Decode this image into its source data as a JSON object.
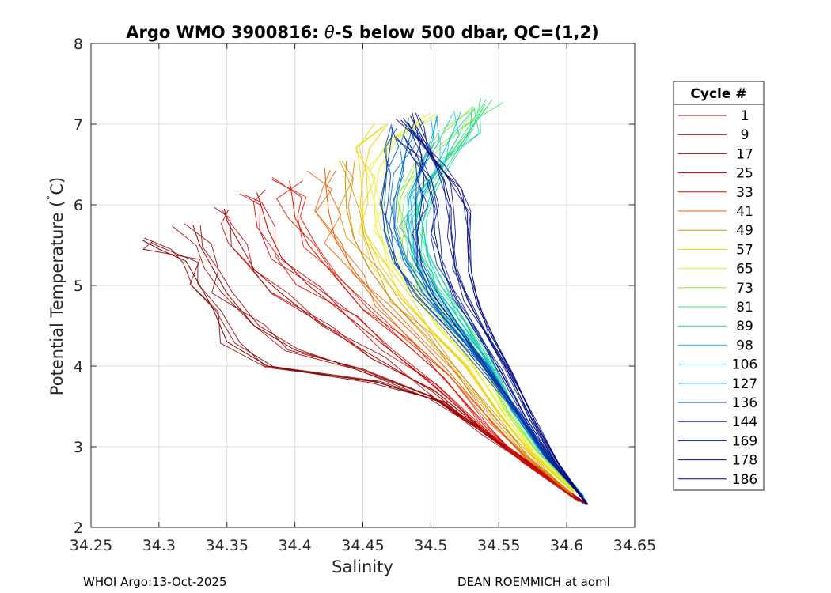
{
  "chart_data": {
    "type": "line",
    "title_prefix": "Argo WMO 3900816: ",
    "title_theta": "θ",
    "title_suffix": "-S below 500 dbar,  QC=(1,2)",
    "xlabel": "Salinity",
    "ylabel_main": "Potential Temperature (",
    "ylabel_deg": "˚",
    "ylabel_end": "C)",
    "xlim": [
      34.25,
      34.65
    ],
    "ylim": [
      2,
      8
    ],
    "xticks": [
      34.25,
      34.3,
      34.35,
      34.4,
      34.45,
      34.5,
      34.55,
      34.6,
      34.65
    ],
    "xtick_labels": [
      "34.25",
      "34.3",
      "34.35",
      "34.4",
      "34.45",
      "34.5",
      "34.55",
      "34.6",
      "34.65"
    ],
    "yticks": [
      2,
      3,
      4,
      5,
      6,
      7,
      8
    ],
    "ytick_labels": [
      "2",
      "3",
      "4",
      "5",
      "6",
      "7",
      "8"
    ],
    "grid": true,
    "legend_title": "Cycle #",
    "legend_position": "right",
    "series": [
      {
        "name": "1",
        "color": "#800000",
        "points": [
          [
            34.615,
            2.28
          ],
          [
            34.58,
            2.7
          ],
          [
            34.55,
            3.05
          ],
          [
            34.51,
            3.55
          ],
          [
            34.46,
            3.8
          ],
          [
            34.38,
            4.0
          ],
          [
            34.35,
            4.3
          ],
          [
            34.34,
            4.7
          ],
          [
            34.33,
            5.0
          ],
          [
            34.32,
            5.3
          ],
          [
            34.3,
            5.45
          ],
          [
            34.288,
            5.56
          ]
        ]
      },
      {
        "name": "9",
        "color": "#940000",
        "points": [
          [
            34.612,
            2.3
          ],
          [
            34.578,
            2.72
          ],
          [
            34.545,
            3.1
          ],
          [
            34.5,
            3.62
          ],
          [
            34.45,
            3.95
          ],
          [
            34.4,
            4.2
          ],
          [
            34.37,
            4.5
          ],
          [
            34.35,
            4.9
          ],
          [
            34.34,
            5.2
          ],
          [
            34.33,
            5.5
          ],
          [
            34.325,
            5.75
          ]
        ]
      },
      {
        "name": "17",
        "color": "#aa0000",
        "points": [
          [
            34.61,
            2.32
          ],
          [
            34.575,
            2.75
          ],
          [
            34.54,
            3.15
          ],
          [
            34.5,
            3.7
          ],
          [
            34.46,
            4.1
          ],
          [
            34.42,
            4.5
          ],
          [
            34.39,
            4.9
          ],
          [
            34.37,
            5.2
          ],
          [
            34.36,
            5.5
          ],
          [
            34.35,
            5.8
          ],
          [
            34.348,
            5.95
          ]
        ]
      },
      {
        "name": "25",
        "color": "#c20000",
        "points": [
          [
            34.608,
            2.35
          ],
          [
            34.572,
            2.78
          ],
          [
            34.54,
            3.2
          ],
          [
            34.5,
            3.78
          ],
          [
            34.47,
            4.2
          ],
          [
            34.44,
            4.6
          ],
          [
            34.41,
            5.0
          ],
          [
            34.39,
            5.35
          ],
          [
            34.38,
            5.7
          ],
          [
            34.375,
            6.0
          ],
          [
            34.372,
            6.15
          ]
        ]
      },
      {
        "name": "33",
        "color": "#d81400",
        "points": [
          [
            34.606,
            2.38
          ],
          [
            34.57,
            2.8
          ],
          [
            34.54,
            3.25
          ],
          [
            34.51,
            3.85
          ],
          [
            34.48,
            4.3
          ],
          [
            34.45,
            4.7
          ],
          [
            34.43,
            5.1
          ],
          [
            34.41,
            5.5
          ],
          [
            34.4,
            5.85
          ],
          [
            34.398,
            6.1
          ],
          [
            34.396,
            6.3
          ]
        ]
      },
      {
        "name": "41",
        "color": "#e85a00",
        "points": [
          [
            34.605,
            2.4
          ],
          [
            34.57,
            2.85
          ],
          [
            34.545,
            3.3
          ],
          [
            34.515,
            3.9
          ],
          [
            34.49,
            4.35
          ],
          [
            34.465,
            4.75
          ],
          [
            34.445,
            5.15
          ],
          [
            34.43,
            5.55
          ],
          [
            34.425,
            5.9
          ],
          [
            34.423,
            6.2
          ],
          [
            34.422,
            6.45
          ]
        ]
      },
      {
        "name": "49",
        "color": "#d09000",
        "points": [
          [
            34.604,
            2.42
          ],
          [
            34.572,
            2.88
          ],
          [
            34.548,
            3.35
          ],
          [
            34.52,
            3.95
          ],
          [
            34.495,
            4.4
          ],
          [
            34.472,
            4.8
          ],
          [
            34.455,
            5.2
          ],
          [
            34.443,
            5.6
          ],
          [
            34.438,
            5.95
          ],
          [
            34.437,
            6.3
          ],
          [
            34.438,
            6.55
          ]
        ]
      },
      {
        "name": "57",
        "color": "#f0d000",
        "points": [
          [
            34.605,
            2.44
          ],
          [
            34.574,
            2.9
          ],
          [
            34.55,
            3.4
          ],
          [
            34.525,
            4.0
          ],
          [
            34.5,
            4.45
          ],
          [
            34.48,
            4.85
          ],
          [
            34.463,
            5.25
          ],
          [
            34.452,
            5.65
          ],
          [
            34.448,
            6.0
          ],
          [
            34.45,
            6.35
          ],
          [
            34.455,
            6.7
          ],
          [
            34.468,
            7.0
          ]
        ]
      },
      {
        "name": "65",
        "color": "#e6ef20",
        "points": [
          [
            34.606,
            2.45
          ],
          [
            34.576,
            2.92
          ],
          [
            34.553,
            3.42
          ],
          [
            34.53,
            4.05
          ],
          [
            34.506,
            4.5
          ],
          [
            34.486,
            4.9
          ],
          [
            34.47,
            5.3
          ],
          [
            34.46,
            5.7
          ],
          [
            34.458,
            6.05
          ],
          [
            34.462,
            6.45
          ],
          [
            34.475,
            6.8
          ],
          [
            34.495,
            7.1
          ]
        ]
      },
      {
        "name": "73",
        "color": "#90e640",
        "points": [
          [
            34.607,
            2.46
          ],
          [
            34.578,
            2.94
          ],
          [
            34.556,
            3.45
          ],
          [
            34.535,
            4.1
          ],
          [
            34.513,
            4.55
          ],
          [
            34.495,
            4.95
          ],
          [
            34.482,
            5.35
          ],
          [
            34.475,
            5.75
          ],
          [
            34.478,
            6.1
          ],
          [
            34.49,
            6.5
          ],
          [
            34.51,
            6.9
          ],
          [
            34.53,
            7.2
          ]
        ]
      },
      {
        "name": "81",
        "color": "#40e060",
        "points": [
          [
            34.608,
            2.47
          ],
          [
            34.58,
            2.96
          ],
          [
            34.56,
            3.48
          ],
          [
            34.54,
            4.12
          ],
          [
            34.52,
            4.6
          ],
          [
            34.503,
            5.0
          ],
          [
            34.492,
            5.4
          ],
          [
            34.488,
            5.8
          ],
          [
            34.494,
            6.15
          ],
          [
            34.51,
            6.55
          ],
          [
            34.53,
            6.95
          ],
          [
            34.545,
            7.3
          ]
        ]
      },
      {
        "name": "89",
        "color": "#20d4a0",
        "points": [
          [
            34.609,
            2.44
          ],
          [
            34.582,
            2.93
          ],
          [
            34.562,
            3.46
          ],
          [
            34.542,
            4.1
          ],
          [
            34.524,
            4.58
          ],
          [
            34.508,
            4.98
          ],
          [
            34.497,
            5.38
          ],
          [
            34.494,
            5.78
          ],
          [
            34.5,
            6.15
          ],
          [
            34.515,
            6.55
          ],
          [
            34.528,
            6.9
          ],
          [
            34.54,
            7.25
          ]
        ]
      },
      {
        "name": "98",
        "color": "#10c0d8",
        "points": [
          [
            34.61,
            2.42
          ],
          [
            34.583,
            2.92
          ],
          [
            34.562,
            3.45
          ],
          [
            34.54,
            4.08
          ],
          [
            34.522,
            4.55
          ],
          [
            34.505,
            4.95
          ],
          [
            34.493,
            5.35
          ],
          [
            34.489,
            5.75
          ],
          [
            34.493,
            6.1
          ],
          [
            34.505,
            6.5
          ],
          [
            34.515,
            6.85
          ],
          [
            34.522,
            7.15
          ]
        ]
      },
      {
        "name": "106",
        "color": "#0aa8e0",
        "points": [
          [
            34.611,
            2.4
          ],
          [
            34.584,
            2.9
          ],
          [
            34.562,
            3.44
          ],
          [
            34.538,
            4.06
          ],
          [
            34.518,
            4.52
          ],
          [
            34.5,
            4.92
          ],
          [
            34.487,
            5.32
          ],
          [
            34.482,
            5.72
          ],
          [
            34.484,
            6.08
          ],
          [
            34.492,
            6.45
          ],
          [
            34.5,
            6.8
          ],
          [
            34.505,
            7.1
          ]
        ]
      },
      {
        "name": "127",
        "color": "#0070c8",
        "points": [
          [
            34.612,
            2.38
          ],
          [
            34.585,
            2.88
          ],
          [
            34.563,
            3.42
          ],
          [
            34.537,
            4.04
          ],
          [
            34.515,
            4.5
          ],
          [
            34.495,
            4.9
          ],
          [
            34.48,
            5.3
          ],
          [
            34.473,
            5.7
          ],
          [
            34.473,
            6.05
          ],
          [
            34.478,
            6.4
          ],
          [
            34.483,
            6.75
          ],
          [
            34.488,
            7.05
          ]
        ]
      },
      {
        "name": "136",
        "color": "#0040b0",
        "points": [
          [
            34.612,
            2.36
          ],
          [
            34.586,
            2.86
          ],
          [
            34.564,
            3.4
          ],
          [
            34.535,
            4.02
          ],
          [
            34.512,
            4.48
          ],
          [
            34.49,
            4.88
          ],
          [
            34.474,
            5.28
          ],
          [
            34.466,
            5.68
          ],
          [
            34.464,
            6.02
          ],
          [
            34.467,
            6.38
          ],
          [
            34.47,
            6.7
          ],
          [
            34.472,
            6.98
          ]
        ]
      },
      {
        "name": "144",
        "color": "#0020a0",
        "points": [
          [
            34.613,
            2.34
          ],
          [
            34.588,
            2.84
          ],
          [
            34.566,
            3.38
          ],
          [
            34.54,
            4.0
          ],
          [
            34.52,
            4.46
          ],
          [
            34.503,
            4.86
          ],
          [
            34.493,
            5.26
          ],
          [
            34.49,
            5.66
          ],
          [
            34.493,
            6.0
          ],
          [
            34.495,
            6.3
          ],
          [
            34.493,
            6.6
          ],
          [
            34.49,
            6.9
          ]
        ]
      },
      {
        "name": "169",
        "color": "#001890",
        "points": [
          [
            34.614,
            2.32
          ],
          [
            34.59,
            2.82
          ],
          [
            34.57,
            3.36
          ],
          [
            34.55,
            3.98
          ],
          [
            34.532,
            4.44
          ],
          [
            34.518,
            4.84
          ],
          [
            34.508,
            5.24
          ],
          [
            34.503,
            5.64
          ],
          [
            34.502,
            5.98
          ],
          [
            34.497,
            6.3
          ],
          [
            34.49,
            6.6
          ],
          [
            34.48,
            6.85
          ]
        ]
      },
      {
        "name": "178",
        "color": "#00107a",
        "points": [
          [
            34.614,
            2.3
          ],
          [
            34.592,
            2.8
          ],
          [
            34.574,
            3.34
          ],
          [
            34.556,
            3.96
          ],
          [
            34.54,
            4.42
          ],
          [
            34.527,
            4.82
          ],
          [
            34.518,
            5.22
          ],
          [
            34.515,
            5.62
          ],
          [
            34.515,
            5.96
          ],
          [
            34.51,
            6.3
          ],
          [
            34.5,
            6.65
          ],
          [
            34.49,
            6.95
          ],
          [
            34.485,
            7.1
          ]
        ]
      },
      {
        "name": "186",
        "color": "#000880",
        "points": [
          [
            34.615,
            2.29
          ],
          [
            34.594,
            2.78
          ],
          [
            34.577,
            3.3
          ],
          [
            34.56,
            3.9
          ],
          [
            34.545,
            4.36
          ],
          [
            34.534,
            4.76
          ],
          [
            34.528,
            5.16
          ],
          [
            34.527,
            5.56
          ],
          [
            34.527,
            5.9
          ],
          [
            34.52,
            6.2
          ],
          [
            34.505,
            6.5
          ],
          [
            34.492,
            6.8
          ],
          [
            34.478,
            7.05
          ]
        ]
      }
    ],
    "footer_left": "WHOI Argo:13-Oct-2025",
    "footer_right": "DEAN ROEMMICH at aoml"
  }
}
